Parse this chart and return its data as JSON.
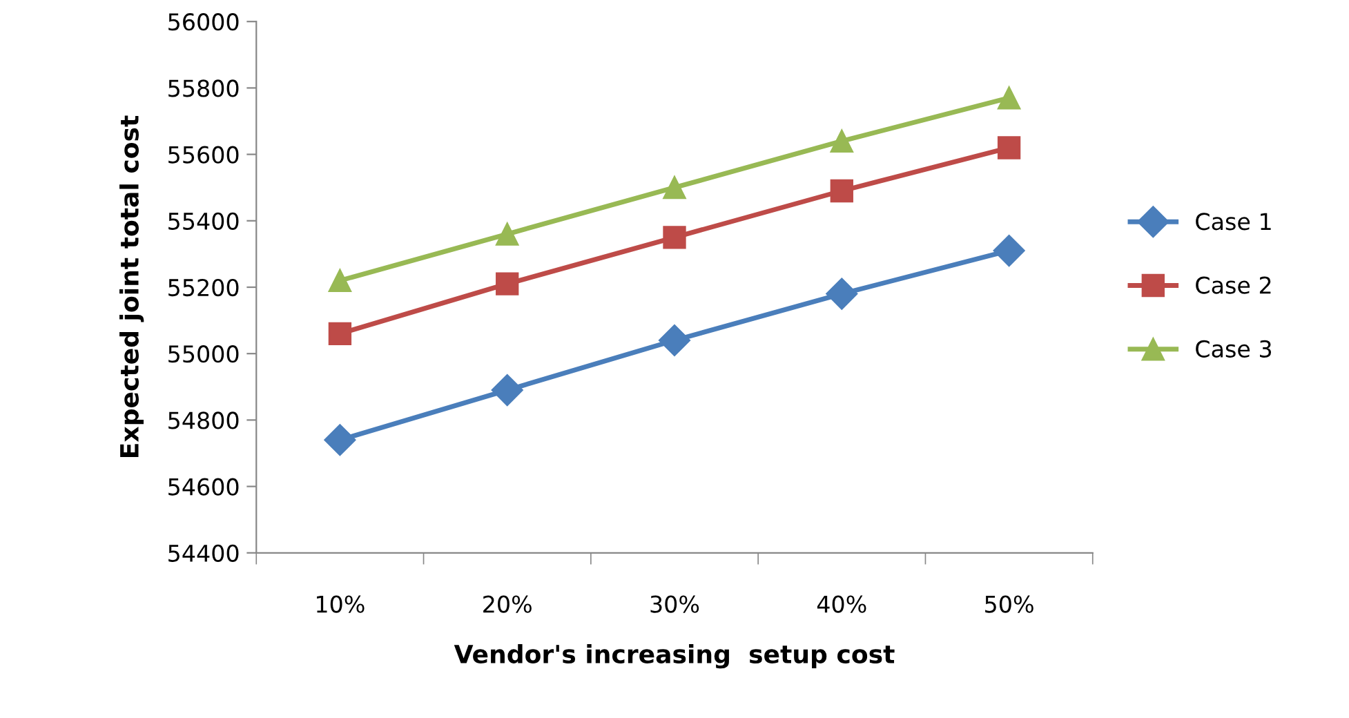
{
  "chart_data": {
    "type": "line",
    "xlabel": "Vendor's increasing  setup cost",
    "ylabel": "Expected joint total cost",
    "categories": [
      "10%",
      "20%",
      "30%",
      "40%",
      "50%"
    ],
    "series": [
      {
        "name": "Case 1",
        "color": "#4a7ebb",
        "marker": "diamond",
        "values": [
          54740,
          54890,
          55040,
          55180,
          55310
        ]
      },
      {
        "name": "Case 2",
        "color": "#be4b48",
        "marker": "square",
        "values": [
          55060,
          55210,
          55350,
          55490,
          55620
        ]
      },
      {
        "name": "Case 3",
        "color": "#98b954",
        "marker": "triangle",
        "values": [
          55220,
          55360,
          55500,
          55640,
          55770
        ]
      }
    ],
    "ylim": [
      54400,
      56000
    ],
    "yticks": [
      54400,
      54600,
      54800,
      55000,
      55200,
      55400,
      55600,
      55800,
      56000
    ],
    "grid": false,
    "legend": "right"
  }
}
